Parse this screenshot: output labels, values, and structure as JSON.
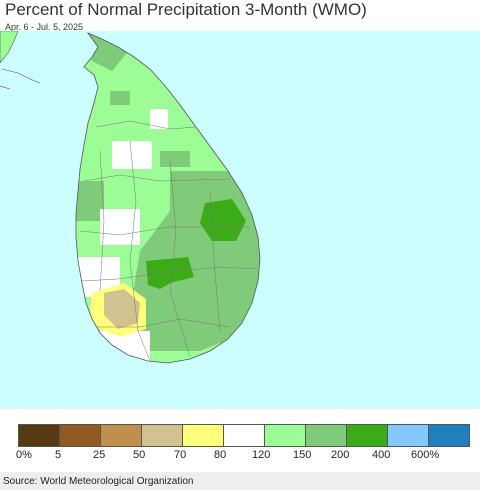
{
  "header": {
    "title": "Percent of Normal Precipitation 3-Month (WMO)",
    "subtitle": "Apr. 6 - Jul. 5, 2025"
  },
  "map": {
    "ocean_color": "#ccfeff",
    "boundary_color": "#555555"
  },
  "legend": {
    "colors": [
      "#563b12",
      "#8f5b22",
      "#c18f4d",
      "#d1c290",
      "#feff7a",
      "#ffffff",
      "#9cfc96",
      "#7fcb7a",
      "#3bab17",
      "#84c8ff",
      "#1f7fbf"
    ],
    "labels": [
      "0%",
      "5",
      "25",
      "50",
      "70",
      "80",
      "120",
      "150",
      "200",
      "400",
      "600%"
    ]
  },
  "footer": {
    "source": "Source: World Meteorological Organization"
  }
}
